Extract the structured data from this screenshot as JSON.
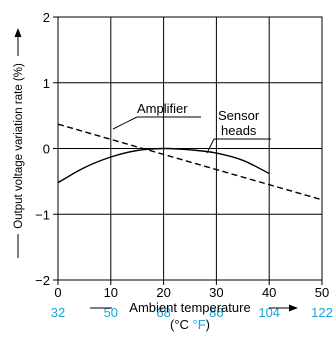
{
  "chart_data": {
    "type": "line",
    "xlabel": "Ambient temperature",
    "xunit_open": "(°C ",
    "xunit_f": "°F",
    "xunit_close": ")",
    "ylabel": "Output voltage variation rate (%)",
    "xlim": [
      0,
      50
    ],
    "ylim": [
      -2,
      2
    ],
    "x_ticks": [
      0,
      10,
      20,
      30,
      40,
      50
    ],
    "x_ticks_f": [
      32,
      50,
      68,
      86,
      104,
      122
    ],
    "y_ticks": [
      2,
      1,
      0,
      -1,
      -2
    ],
    "y_tick_labels": [
      "2",
      "1",
      "0",
      "−1",
      "−2"
    ],
    "grid": true,
    "colors": {
      "axis": "#000000",
      "fahrenheit": "#1aa3dc"
    },
    "series": [
      {
        "name": "Amplifier",
        "style": "dashed",
        "x": [
          0,
          50
        ],
        "y": [
          0.37,
          -0.78
        ]
      },
      {
        "name": "Sensor heads",
        "style": "solid",
        "x": [
          0,
          5,
          10,
          15,
          20,
          25,
          30,
          35,
          40
        ],
        "y": [
          -0.52,
          -0.29,
          -0.13,
          -0.03,
          0.0,
          -0.02,
          -0.07,
          -0.18,
          -0.38
        ]
      }
    ],
    "annotations": [
      {
        "text": "Amplifier"
      },
      {
        "text": "Sensor\nheads"
      }
    ]
  }
}
